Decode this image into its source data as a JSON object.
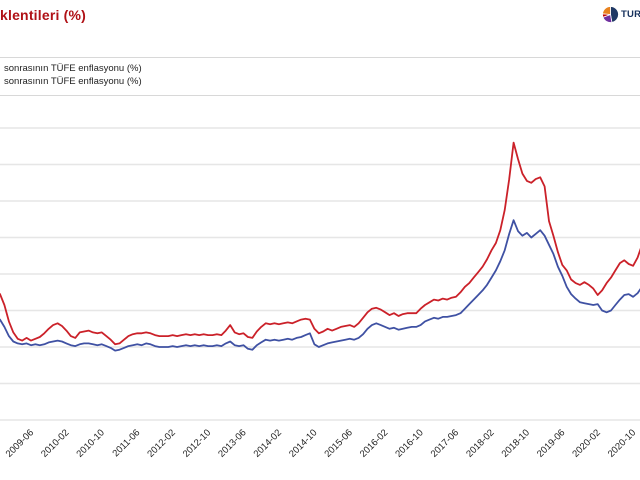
{
  "header": {
    "title": "klentileri (%)",
    "title_color": "#b01116",
    "logo": {
      "text": "TURK",
      "slice_colors": [
        "#1f3864",
        "#7030a0",
        "#c00000",
        "#e8821e"
      ]
    }
  },
  "legend": {
    "items": [
      {
        "label": "sonrasının TÜFE enflasyonu (%)",
        "color": "#cb2129"
      },
      {
        "label": "sonrasının TÜFE enflasyonu (%)",
        "color": "#3f51a3"
      }
    ]
  },
  "chart_data": {
    "type": "line",
    "title": "klentileri (%)",
    "xlabel": "",
    "ylabel": "",
    "grid": "horizontal",
    "grid_color": "#e6e6e6",
    "grid_values": [
      4,
      6,
      8,
      10,
      12,
      14,
      16,
      18,
      20
    ],
    "ylim": [
      4,
      21.7
    ],
    "legend_position": "top-left",
    "x_tick_labels": [
      "2009-06",
      "2010-02",
      "2010-10",
      "2011-06",
      "2012-02",
      "2012-10",
      "2013-06",
      "2014-02",
      "2014-10",
      "2015-06",
      "2016-02",
      "2016-10",
      "2017-06",
      "2018-02",
      "2018-10",
      "2019-06",
      "2020-02",
      "2020-10"
    ],
    "x": [
      "2008-11",
      "2008-12",
      "2009-01",
      "2009-02",
      "2009-03",
      "2009-04",
      "2009-05",
      "2009-06",
      "2009-07",
      "2009-08",
      "2009-09",
      "2009-10",
      "2009-11",
      "2009-12",
      "2010-01",
      "2010-02",
      "2010-03",
      "2010-04",
      "2010-05",
      "2010-06",
      "2010-07",
      "2010-08",
      "2010-09",
      "2010-10",
      "2010-11",
      "2010-12",
      "2011-01",
      "2011-02",
      "2011-03",
      "2011-04",
      "2011-05",
      "2011-06",
      "2011-07",
      "2011-08",
      "2011-09",
      "2011-10",
      "2011-11",
      "2011-12",
      "2012-01",
      "2012-02",
      "2012-03",
      "2012-04",
      "2012-05",
      "2012-06",
      "2012-07",
      "2012-08",
      "2012-09",
      "2012-10",
      "2012-11",
      "2012-12",
      "2013-01",
      "2013-02",
      "2013-03",
      "2013-04",
      "2013-05",
      "2013-06",
      "2013-07",
      "2013-08",
      "2013-09",
      "2013-10",
      "2013-11",
      "2013-12",
      "2014-01",
      "2014-02",
      "2014-03",
      "2014-04",
      "2014-05",
      "2014-06",
      "2014-07",
      "2014-08",
      "2014-09",
      "2014-10",
      "2014-11",
      "2014-12",
      "2015-01",
      "2015-02",
      "2015-03",
      "2015-04",
      "2015-05",
      "2015-06",
      "2015-07",
      "2015-08",
      "2015-09",
      "2015-10",
      "2015-11",
      "2015-12",
      "2016-01",
      "2016-02",
      "2016-03",
      "2016-04",
      "2016-05",
      "2016-06",
      "2016-07",
      "2016-08",
      "2016-09",
      "2016-10",
      "2016-11",
      "2016-12",
      "2017-01",
      "2017-02",
      "2017-03",
      "2017-04",
      "2017-05",
      "2017-06",
      "2017-07",
      "2017-08",
      "2017-09",
      "2017-10",
      "2017-11",
      "2017-12",
      "2018-01",
      "2018-02",
      "2018-03",
      "2018-04",
      "2018-05",
      "2018-06",
      "2018-07",
      "2018-08",
      "2018-09",
      "2018-10",
      "2018-11",
      "2018-12",
      "2019-01",
      "2019-02",
      "2019-03",
      "2019-04",
      "2019-05",
      "2019-06",
      "2019-07",
      "2019-08",
      "2019-09",
      "2019-10",
      "2019-11",
      "2019-12",
      "2020-01",
      "2020-02",
      "2020-03",
      "2020-04",
      "2020-05",
      "2020-06",
      "2020-07",
      "2020-08",
      "2020-09",
      "2020-10",
      "2020-11",
      "2020-12"
    ],
    "series": [
      {
        "name": "sonrasının TÜFE enflasyonu (%)",
        "color": "#cb2129",
        "values": [
          10.9,
          10.3,
          9.4,
          8.8,
          8.45,
          8.35,
          8.5,
          8.35,
          8.45,
          8.55,
          8.75,
          9.0,
          9.2,
          9.3,
          9.15,
          8.9,
          8.6,
          8.5,
          8.8,
          8.85,
          8.9,
          8.8,
          8.75,
          8.8,
          8.6,
          8.4,
          8.15,
          8.2,
          8.4,
          8.6,
          8.7,
          8.75,
          8.75,
          8.8,
          8.75,
          8.65,
          8.6,
          8.6,
          8.6,
          8.65,
          8.6,
          8.65,
          8.7,
          8.65,
          8.7,
          8.65,
          8.7,
          8.65,
          8.65,
          8.7,
          8.65,
          8.9,
          9.2,
          8.8,
          8.7,
          8.75,
          8.55,
          8.5,
          8.85,
          9.1,
          9.3,
          9.25,
          9.3,
          9.25,
          9.3,
          9.35,
          9.3,
          9.4,
          9.5,
          9.55,
          9.5,
          9.0,
          8.75,
          8.85,
          9.0,
          8.9,
          9.0,
          9.1,
          9.15,
          9.2,
          9.1,
          9.3,
          9.6,
          9.9,
          10.1,
          10.15,
          10.05,
          9.9,
          9.75,
          9.85,
          9.7,
          9.8,
          9.85,
          9.85,
          9.85,
          10.1,
          10.3,
          10.45,
          10.6,
          10.55,
          10.65,
          10.6,
          10.7,
          10.75,
          11.0,
          11.3,
          11.5,
          11.8,
          12.1,
          12.4,
          12.8,
          13.3,
          13.7,
          14.4,
          15.5,
          17.2,
          19.2,
          18.3,
          17.5,
          17.1,
          17.0,
          17.2,
          17.3,
          16.8,
          14.9,
          14.1,
          13.2,
          12.5,
          12.2,
          11.7,
          11.5,
          11.4,
          11.55,
          11.4,
          11.2,
          10.85,
          11.1,
          11.5,
          11.8,
          12.2,
          12.6,
          12.75,
          12.55,
          12.45,
          12.9,
          13.6
        ]
      },
      {
        "name": "sonrasının TÜFE enflasyonu (%)",
        "color": "#3f51a3",
        "values": [
          9.5,
          9.1,
          8.6,
          8.3,
          8.2,
          8.15,
          8.2,
          8.1,
          8.15,
          8.1,
          8.15,
          8.25,
          8.3,
          8.35,
          8.3,
          8.2,
          8.1,
          8.05,
          8.15,
          8.2,
          8.2,
          8.15,
          8.1,
          8.15,
          8.05,
          7.95,
          7.8,
          7.85,
          7.95,
          8.05,
          8.1,
          8.15,
          8.1,
          8.2,
          8.15,
          8.05,
          8.0,
          8.0,
          8.0,
          8.05,
          8.0,
          8.05,
          8.1,
          8.05,
          8.1,
          8.05,
          8.1,
          8.05,
          8.05,
          8.1,
          8.05,
          8.2,
          8.3,
          8.1,
          8.05,
          8.1,
          7.9,
          7.85,
          8.1,
          8.25,
          8.4,
          8.35,
          8.4,
          8.35,
          8.4,
          8.45,
          8.4,
          8.5,
          8.55,
          8.65,
          8.75,
          8.15,
          8.0,
          8.1,
          8.2,
          8.25,
          8.3,
          8.35,
          8.4,
          8.45,
          8.4,
          8.5,
          8.7,
          9.0,
          9.2,
          9.3,
          9.2,
          9.1,
          9.0,
          9.05,
          8.95,
          9.0,
          9.05,
          9.1,
          9.1,
          9.2,
          9.4,
          9.5,
          9.6,
          9.55,
          9.65,
          9.65,
          9.7,
          9.75,
          9.85,
          10.1,
          10.35,
          10.6,
          10.85,
          11.1,
          11.4,
          11.8,
          12.2,
          12.7,
          13.3,
          14.2,
          14.95,
          14.35,
          14.1,
          14.25,
          14.0,
          14.2,
          14.4,
          14.1,
          13.6,
          13.1,
          12.4,
          11.9,
          11.3,
          10.9,
          10.65,
          10.45,
          10.4,
          10.35,
          10.3,
          10.35,
          10.0,
          9.9,
          10.0,
          10.3,
          10.6,
          10.85,
          10.9,
          10.75,
          10.95,
          11.3
        ]
      }
    ]
  }
}
